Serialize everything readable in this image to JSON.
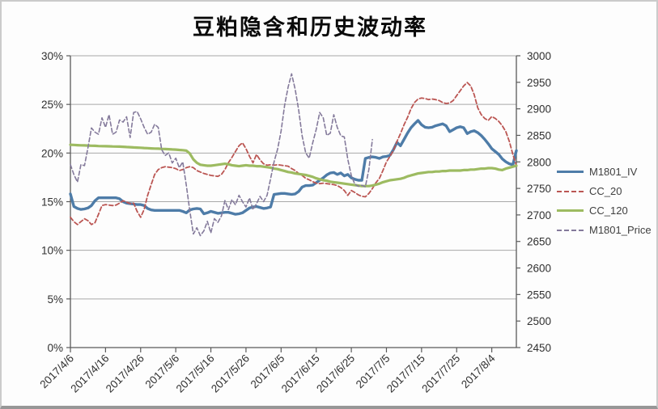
{
  "colors": {
    "grid": "#a8a8a8",
    "axis_line": "#5a5a5a",
    "tick_label": "#303030",
    "title": "#0a0a0a",
    "background": "#fdfdfd",
    "series_blue": "#4e7ca8",
    "series_red": "#bb5653",
    "series_green": "#9dbb61",
    "series_purple": "#847a9b"
  },
  "chart_data": {
    "type": "line",
    "title": "豆粕隐含和历史波动率",
    "legend_position": "right",
    "grid": "horizontal-only",
    "x_tick_labels": [
      "2017/4/6",
      "2017/4/16",
      "2017/4/26",
      "2017/5/6",
      "2017/5/16",
      "2017/5/26",
      "2017/6/5",
      "2017/6/15",
      "2017/6/25",
      "2017/7/5",
      "2017/7/15",
      "2017/7/25",
      "2017/8/4"
    ],
    "x_tick_day_indices": [
      0,
      10,
      20,
      30,
      40,
      50,
      60,
      70,
      80,
      90,
      100,
      110,
      120
    ],
    "days_total": 127,
    "left_axis": {
      "min": 0,
      "max": 30,
      "step": 5,
      "tick_labels": [
        "0%",
        "5%",
        "10%",
        "15%",
        "20%",
        "25%",
        "30%"
      ]
    },
    "right_axis": {
      "min": 2450,
      "max": 3000,
      "step": 50,
      "tick_labels": [
        "2450",
        "2500",
        "2550",
        "2600",
        "2650",
        "2700",
        "2750",
        "2800",
        "2850",
        "2900",
        "2950",
        "3000"
      ]
    },
    "series": [
      {
        "name": "M1801_IV",
        "axis": "left",
        "color": "#4e7ca8",
        "style": "solid",
        "width": 3.4,
        "values": [
          15.8,
          14.5,
          14.3,
          14.2,
          14.25,
          14.35,
          14.6,
          15.1,
          15.4,
          15.4,
          15.4,
          15.4,
          15.4,
          15.4,
          15.3,
          15.0,
          14.85,
          14.8,
          14.75,
          14.7,
          14.7,
          14.6,
          14.3,
          14.15,
          14.1,
          14.1,
          14.1,
          14.1,
          14.1,
          14.1,
          14.1,
          14.1,
          14.0,
          13.85,
          14.15,
          14.25,
          14.3,
          14.25,
          13.75,
          13.85,
          14.0,
          13.9,
          13.8,
          13.85,
          13.9,
          13.9,
          13.8,
          13.7,
          13.75,
          13.85,
          14.1,
          14.35,
          14.45,
          14.5,
          14.4,
          14.3,
          14.35,
          14.45,
          15.75,
          15.8,
          15.85,
          15.85,
          15.8,
          15.75,
          15.8,
          16.05,
          16.5,
          16.65,
          16.65,
          16.7,
          16.95,
          17.2,
          17.45,
          17.75,
          17.95,
          18.0,
          17.8,
          17.95,
          17.65,
          17.8,
          17.45,
          17.3,
          17.2,
          17.2,
          19.45,
          19.55,
          19.6,
          19.55,
          19.45,
          19.6,
          19.65,
          19.75,
          20.35,
          21.1,
          20.75,
          21.4,
          22.05,
          22.6,
          23.0,
          23.35,
          22.9,
          22.65,
          22.6,
          22.65,
          22.8,
          22.9,
          23.0,
          22.8,
          22.2,
          22.4,
          22.6,
          22.7,
          22.6,
          22.0,
          22.2,
          22.3,
          22.1,
          21.8,
          21.4,
          20.95,
          20.45,
          20.15,
          19.85,
          19.4,
          19.1,
          18.9,
          18.8,
          20.25
        ]
      },
      {
        "name": "CC_20",
        "axis": "left",
        "color": "#bb5653",
        "style": "dashed",
        "width": 1.8,
        "values": [
          13.4,
          12.95,
          12.65,
          12.95,
          13.25,
          13.05,
          12.65,
          12.85,
          13.7,
          14.6,
          14.7,
          14.65,
          14.6,
          14.65,
          14.85,
          15.1,
          14.95,
          14.8,
          14.85,
          14.0,
          13.4,
          14.2,
          15.65,
          16.75,
          17.8,
          18.3,
          18.5,
          18.6,
          18.55,
          18.5,
          18.4,
          18.2,
          18.3,
          18.5,
          18.6,
          18.5,
          18.2,
          18.05,
          17.9,
          17.8,
          17.7,
          17.65,
          17.6,
          17.8,
          18.3,
          19.0,
          19.55,
          20.15,
          20.75,
          21.05,
          20.45,
          19.65,
          19.0,
          19.85,
          19.3,
          18.9,
          18.75,
          18.8,
          18.75,
          18.8,
          18.75,
          18.7,
          18.65,
          18.4,
          18.2,
          17.9,
          17.7,
          17.4,
          17.25,
          17.05,
          16.9,
          16.85,
          16.9,
          16.85,
          16.8,
          16.75,
          16.65,
          16.45,
          16.15,
          15.65,
          16.15,
          15.95,
          15.7,
          15.55,
          15.5,
          15.85,
          16.35,
          16.95,
          17.4,
          18.2,
          19.1,
          19.65,
          20.25,
          21.2,
          22.0,
          22.9,
          23.65,
          24.55,
          25.2,
          25.55,
          25.65,
          25.6,
          25.5,
          25.55,
          25.5,
          25.4,
          25.2,
          25.1,
          25.15,
          25.4,
          25.9,
          26.4,
          26.9,
          27.25,
          26.9,
          26.0,
          24.65,
          23.95,
          23.55,
          23.35,
          23.75,
          23.55,
          23.25,
          22.8,
          22.2,
          21.2,
          19.85,
          18.7
        ]
      },
      {
        "name": "CC_120",
        "axis": "left",
        "color": "#9dbb61",
        "style": "solid",
        "width": 3.2,
        "values": [
          20.85,
          20.83,
          20.81,
          20.79,
          20.78,
          20.77,
          20.75,
          20.74,
          20.72,
          20.71,
          20.7,
          20.69,
          20.68,
          20.67,
          20.66,
          20.64,
          20.62,
          20.6,
          20.58,
          20.56,
          20.54,
          20.52,
          20.5,
          20.48,
          20.46,
          20.45,
          20.43,
          20.41,
          20.39,
          20.37,
          20.35,
          20.32,
          20.29,
          20.25,
          19.95,
          19.35,
          19.0,
          18.8,
          18.75,
          18.7,
          18.7,
          18.75,
          18.8,
          18.85,
          18.9,
          18.85,
          18.75,
          18.7,
          18.65,
          18.7,
          18.75,
          18.7,
          18.7,
          18.65,
          18.65,
          18.6,
          18.55,
          18.5,
          18.4,
          18.35,
          18.25,
          18.15,
          18.05,
          18.0,
          17.9,
          17.85,
          17.8,
          17.75,
          17.65,
          17.55,
          17.4,
          17.3,
          17.2,
          17.15,
          17.05,
          17.0,
          16.95,
          16.9,
          16.85,
          16.8,
          16.75,
          16.7,
          16.65,
          16.6,
          16.6,
          16.6,
          16.65,
          16.75,
          16.85,
          17.0,
          17.1,
          17.2,
          17.25,
          17.3,
          17.35,
          17.45,
          17.6,
          17.7,
          17.8,
          17.9,
          17.95,
          18.0,
          18.05,
          18.05,
          18.1,
          18.1,
          18.15,
          18.15,
          18.2,
          18.2,
          18.2,
          18.2,
          18.25,
          18.25,
          18.3,
          18.3,
          18.35,
          18.4,
          18.4,
          18.45,
          18.45,
          18.4,
          18.3,
          18.25,
          18.4,
          18.5,
          18.6,
          18.7
        ]
      },
      {
        "name": "M1801_Price",
        "axis": "right",
        "color": "#847a9b",
        "style": "dashed",
        "width": 1.6,
        "values": [
          2795,
          2776,
          2762,
          2795,
          2793,
          2827,
          2864,
          2856,
          2852,
          2883,
          2865,
          2889,
          2852,
          2856,
          2879,
          2875,
          2885,
          2846,
          2893,
          2895,
          2881,
          2865,
          2852,
          2856,
          2871,
          2865,
          2823,
          2812,
          2817,
          2798,
          2807,
          2789,
          2800,
          2756,
          2708,
          2664,
          2676,
          2661,
          2670,
          2688,
          2666,
          2693,
          2686,
          2698,
          2727,
          2710,
          2729,
          2719,
          2737,
          2725,
          2715,
          2732,
          2710,
          2721,
          2735,
          2725,
          2737,
          2768,
          2800,
          2824,
          2858,
          2907,
          2941,
          2966,
          2937,
          2898,
          2849,
          2817,
          2807,
          2836,
          2861,
          2893,
          2883,
          2850,
          2854,
          2889,
          2865,
          2849,
          2847,
          2805,
          2774,
          2758,
          2754,
          2756,
          2753,
          2786,
          2842,
          null,
          null,
          null,
          null,
          null,
          null,
          null,
          null,
          null,
          null,
          null,
          null,
          null,
          null,
          null,
          null,
          null,
          null,
          null,
          null,
          null,
          null,
          null,
          null,
          null,
          null,
          null,
          null,
          null,
          null,
          null,
          null,
          null,
          null,
          null,
          null,
          null,
          null,
          null,
          null,
          null
        ]
      }
    ]
  }
}
